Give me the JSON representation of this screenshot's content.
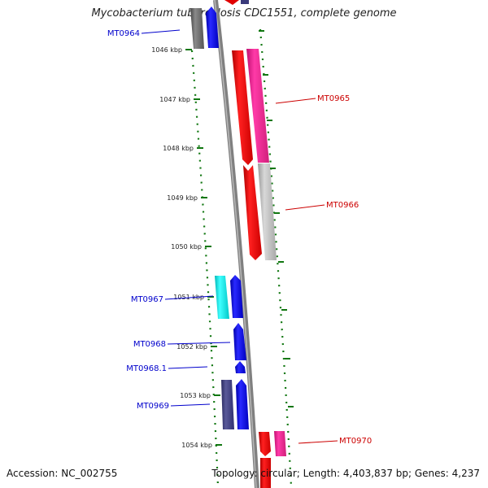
{
  "title": "Mycobacterium tuberculosis CDC1551, complete genome",
  "footer": {
    "accession": "Accession: NC_002755",
    "topology": "Topology: circular; Length: 4,403,837 bp; Genes: 4,237"
  },
  "colors": {
    "forward_label": "#0000cc",
    "reverse_label": "#cc0000",
    "tick": "#117711",
    "backbone": "#808080"
  },
  "ticks": [
    "1046 kbp",
    "1047 kbp",
    "1048 kbp",
    "1049 kbp",
    "1050 kbp",
    "1051 kbp",
    "1052 kbp",
    "1053 kbp",
    "1054 kbp"
  ],
  "gene_labels": [
    {
      "id": "mt0964",
      "text": "MT0964",
      "strand": "forward"
    },
    {
      "id": "mt0965",
      "text": "MT0965",
      "strand": "reverse"
    },
    {
      "id": "mt0966",
      "text": "MT0966",
      "strand": "reverse"
    },
    {
      "id": "mt0967",
      "text": "MT0967",
      "strand": "forward"
    },
    {
      "id": "mt0968",
      "text": "MT0968",
      "strand": "forward"
    },
    {
      "id": "mt0968-1",
      "text": "MT0968.1",
      "strand": "forward"
    },
    {
      "id": "mt0969",
      "text": "MT0969",
      "strand": "forward"
    },
    {
      "id": "mt0970",
      "text": "MT0970",
      "strand": "reverse"
    }
  ]
}
